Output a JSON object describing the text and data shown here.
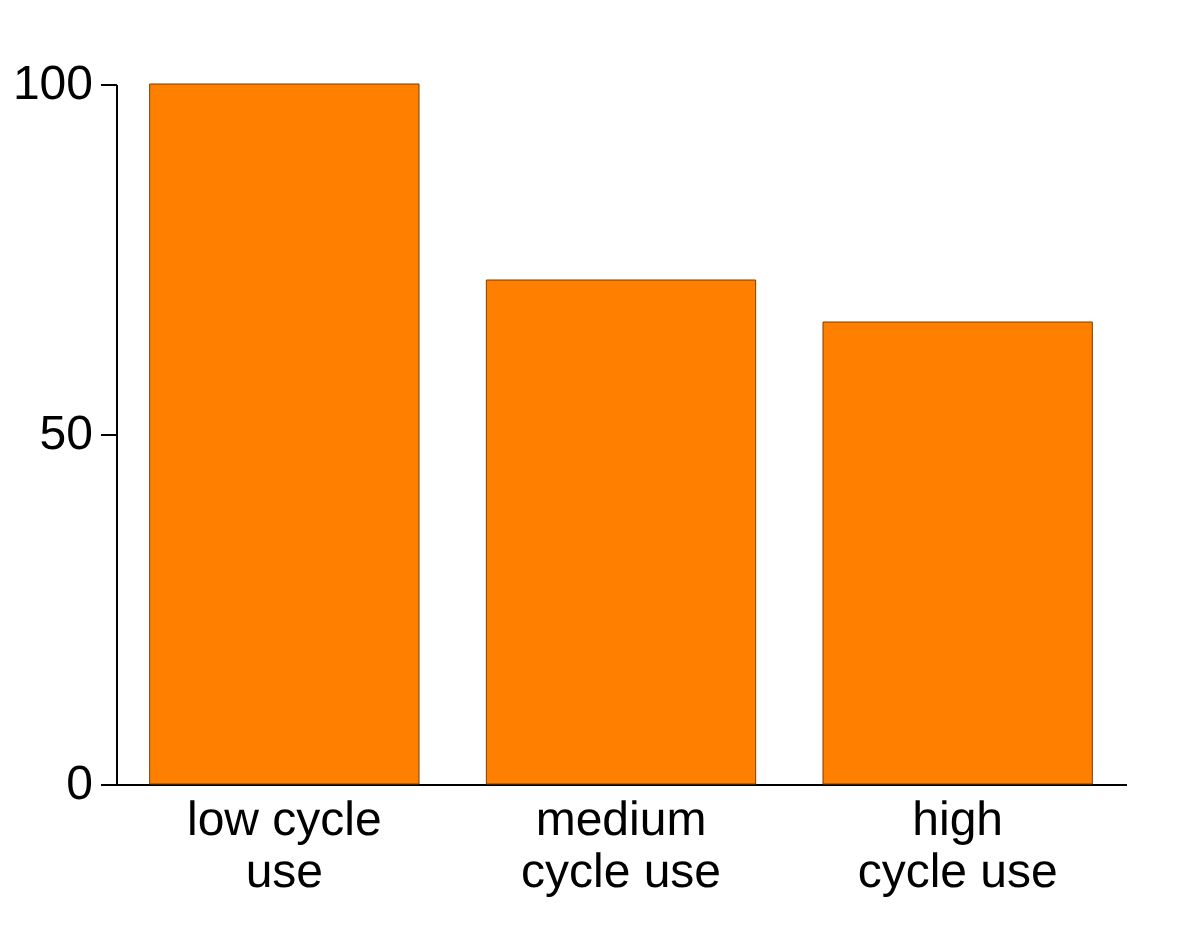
{
  "chart_data": {
    "type": "bar",
    "categories": [
      "low cycle\nuse",
      "medium\ncycle use",
      "high\ncycle use"
    ],
    "values": [
      100,
      72,
      66
    ],
    "color": "#ff8000",
    "ylim": [
      0,
      100
    ],
    "yticks": [
      0,
      50,
      100
    ],
    "grid": false
  }
}
